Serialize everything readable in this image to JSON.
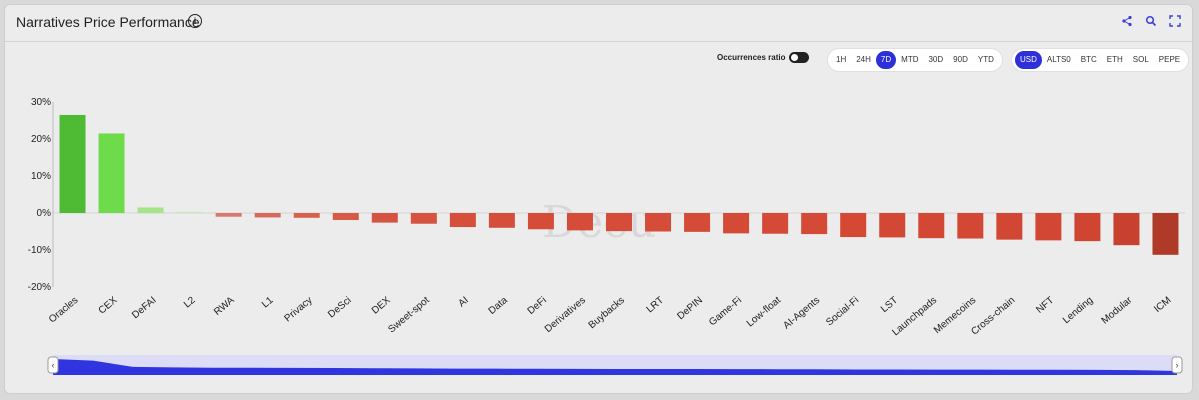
{
  "header": {
    "title": "Narratives Price Performance",
    "info_icon": "i"
  },
  "controls": {
    "occurrences_label": "Occurrences ratio",
    "timeframes": [
      "1H",
      "24H",
      "7D",
      "MTD",
      "30D",
      "90D",
      "YTD"
    ],
    "active_timeframe": "7D",
    "currencies": [
      "USD",
      "ALTS0",
      "BTC",
      "ETH",
      "SOL",
      "PEPE"
    ],
    "active_currency": "USD"
  },
  "watermark": "Decu",
  "chart_data": {
    "type": "bar",
    "categories": [
      "Oracles",
      "CEX",
      "DeFAI",
      "L2",
      "RWA",
      "L1",
      "Privacy",
      "DeSci",
      "DEX",
      "Sweet-spot",
      "AI",
      "Data",
      "DeFi",
      "Derivatives",
      "Buybacks",
      "LRT",
      "DePIN",
      "Game-Fi",
      "Low-float",
      "AI-Agents",
      "Social-Fi",
      "LST",
      "Launchpads",
      "Memecoins",
      "Cross-chain",
      "NFT",
      "Lending",
      "Modular",
      "ICM"
    ],
    "values": [
      26.5,
      21.5,
      1.5,
      0.3,
      -1.0,
      -1.2,
      -1.3,
      -1.9,
      -2.6,
      -2.9,
      -3.8,
      -4.0,
      -4.4,
      -4.7,
      -4.9,
      -5.0,
      -5.1,
      -5.5,
      -5.6,
      -5.7,
      -6.5,
      -6.6,
      -6.8,
      -6.9,
      -7.2,
      -7.4,
      -7.6,
      -8.7,
      -11.3
    ],
    "colors": [
      "#4fba33",
      "#6edb4a",
      "#a6e48a",
      "#c6eab4",
      "#d9776a",
      "#d7695b",
      "#d8604f",
      "#d65a48",
      "#d55441",
      "#d5533f",
      "#d54f3b",
      "#d54e3a",
      "#d54d39",
      "#d54d39",
      "#d54c38",
      "#d54c38",
      "#d44b37",
      "#d44a36",
      "#d44a36",
      "#d44a36",
      "#d44834",
      "#d34834",
      "#d34834",
      "#d34834",
      "#d24733",
      "#d24733",
      "#cf4532",
      "#c8412f",
      "#b03a28"
    ],
    "y_ticks": [
      "30%",
      "20%",
      "10%",
      "0%",
      "-10%",
      "-20%"
    ],
    "ylim": [
      -20,
      30
    ],
    "xlabel": "",
    "ylabel": ""
  }
}
